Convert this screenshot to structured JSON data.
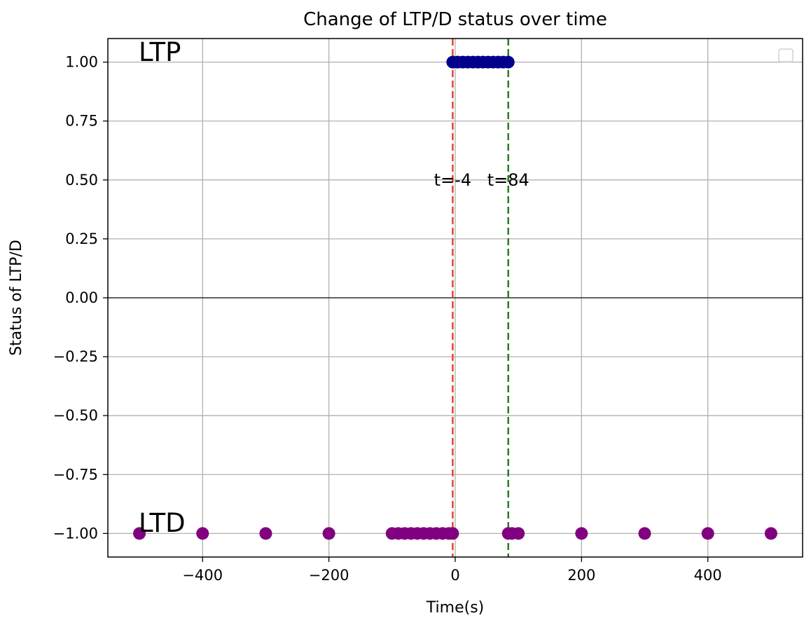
{
  "chart_data": {
    "type": "scatter",
    "title": "Change of LTP/D status over time",
    "xlabel": "Time(s)",
    "ylabel": "Status of LTP/D",
    "xlim": [
      -550,
      550
    ],
    "ylim": [
      -1.1,
      1.1
    ],
    "x_ticks": [
      -400,
      -200,
      0,
      200,
      400
    ],
    "x_tick_labels": [
      "−400",
      "−200",
      "0",
      "200",
      "400"
    ],
    "y_ticks": [
      1.0,
      0.75,
      0.5,
      0.25,
      0.0,
      -0.25,
      -0.5,
      -0.75,
      -1.0
    ],
    "y_tick_labels": [
      "1.00",
      "0.75",
      "0.50",
      "0.25",
      "0.00",
      "−0.25",
      "−0.50",
      "−0.75",
      "−1.00"
    ],
    "grid": true,
    "zero_line": true,
    "legend": "top-right",
    "series": [
      {
        "color": "#00008b",
        "points": [
          [
            -4,
            1
          ],
          [
            4,
            1
          ],
          [
            12,
            1
          ],
          [
            20,
            1
          ],
          [
            28,
            1
          ],
          [
            36,
            1
          ],
          [
            44,
            1
          ],
          [
            52,
            1
          ],
          [
            60,
            1
          ],
          [
            68,
            1
          ],
          [
            76,
            1
          ],
          [
            84,
            1
          ]
        ]
      },
      {
        "color": "#800080",
        "points": [
          [
            -500,
            -1
          ],
          [
            -400,
            -1
          ],
          [
            -300,
            -1
          ],
          [
            -200,
            -1
          ],
          [
            -100,
            -1
          ],
          [
            -90,
            -1
          ],
          [
            -80,
            -1
          ],
          [
            -70,
            -1
          ],
          [
            -60,
            -1
          ],
          [
            -50,
            -1
          ],
          [
            -40,
            -1
          ],
          [
            -30,
            -1
          ],
          [
            -20,
            -1
          ],
          [
            -10,
            -1
          ],
          [
            -4,
            -1
          ],
          [
            84,
            -1
          ],
          [
            90,
            -1
          ],
          [
            100,
            -1
          ],
          [
            200,
            -1
          ],
          [
            300,
            -1
          ],
          [
            400,
            -1
          ],
          [
            500,
            -1
          ]
        ]
      }
    ],
    "vlines": [
      {
        "x": -4,
        "color": "#e8432d",
        "style": "dashed",
        "label": "t=-4"
      },
      {
        "x": 84,
        "color": "#2a7d1f",
        "style": "dashed",
        "label": "t=84"
      }
    ],
    "corner_labels": {
      "top": "LTP",
      "bottom": "LTD"
    }
  }
}
